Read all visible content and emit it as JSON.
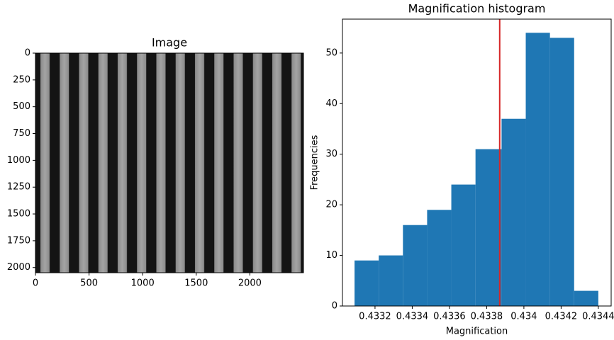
{
  "chart_data": [
    {
      "type": "image",
      "title": "Image",
      "xlim": [
        0,
        2500
      ],
      "xticks": [
        0,
        500,
        1000,
        1500,
        2000
      ],
      "ylim": [
        2048,
        0
      ],
      "yticks": [
        0,
        250,
        500,
        750,
        1000,
        1250,
        1500,
        1750,
        2000
      ]
    },
    {
      "type": "histogram",
      "title": "Magnification histogram",
      "x_label": "Magnification",
      "y_label": "Frequencies",
      "bins": [
        0.43309,
        0.43322,
        0.43335,
        0.43348,
        0.43361,
        0.43374,
        0.43388,
        0.43401,
        0.43414,
        0.43427,
        0.4344
      ],
      "counts": [
        9,
        10,
        16,
        19,
        24,
        31,
        37,
        54,
        53,
        3
      ],
      "color": "#1f77b4",
      "vline": 0.43387,
      "vline_color": "#d62728",
      "xlim": [
        0.433025,
        0.434469
      ],
      "xticks": [
        0.4332,
        0.4334,
        0.4336,
        0.4338,
        0.434,
        0.4342,
        0.4344
      ],
      "ylim": [
        0,
        56.7
      ],
      "yticks": [
        0,
        10,
        20,
        30,
        40,
        50
      ]
    }
  ]
}
